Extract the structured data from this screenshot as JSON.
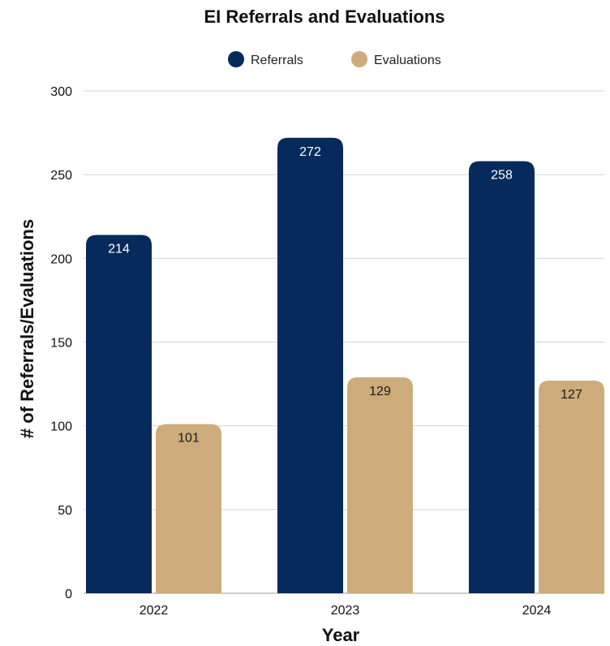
{
  "chart_data": {
    "type": "bar",
    "title": "EI Referrals and Evaluations",
    "xlabel": "Year",
    "ylabel": "# of Referrals/Evaluations",
    "categories": [
      "2022",
      "2023",
      "2024"
    ],
    "series": [
      {
        "name": "Referrals",
        "values": [
          214,
          272,
          258
        ],
        "color": "#052a5b",
        "label_color": "#ffffff"
      },
      {
        "name": "Evaluations",
        "values": [
          101,
          129,
          127
        ],
        "color": "#cdab7b",
        "label_color": "#1a1a1a"
      }
    ],
    "ylim": [
      0,
      300
    ],
    "yticks": [
      0,
      50,
      100,
      150,
      200,
      250,
      300
    ],
    "grid": true,
    "legend_position": "top"
  }
}
